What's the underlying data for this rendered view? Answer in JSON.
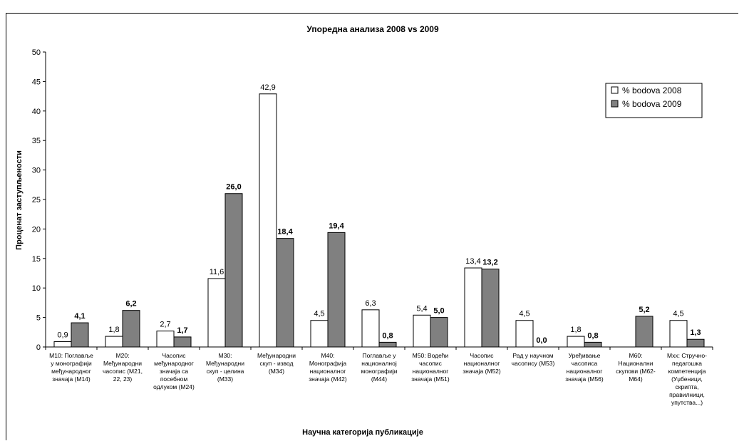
{
  "chart_data": {
    "type": "bar",
    "title": "Упоредна анализа 2008 vs 2009",
    "xlabel": "Научна категорија публикације",
    "ylabel": "Проценат заступљености",
    "ylim": [
      0,
      50
    ],
    "yticks": [
      0,
      5,
      10,
      15,
      20,
      25,
      30,
      35,
      40,
      45,
      50
    ],
    "grid": false,
    "legend_position": "top-right",
    "categories": [
      [
        "M10: Поглавље",
        "у монографији",
        "међународног",
        "значаја (M14)"
      ],
      [
        "M20:",
        "Међународни",
        "часопис (M21,",
        "22, 23)"
      ],
      [
        "Часопис",
        "међународног",
        "значаја са",
        "посебном",
        "одлуком (M24)"
      ],
      [
        "M30:",
        "Међународни",
        "скуп - целина",
        "(M33)"
      ],
      [
        "Међународни",
        "скуп - извод",
        "(M34)"
      ],
      [
        "M40:",
        "Монографија",
        "националног",
        "значаја (M42)"
      ],
      [
        "Поглавље у",
        "националној",
        "монографији",
        "(M44)"
      ],
      [
        "M50: Водећи",
        "часопис",
        "националног",
        "значаја (M51)"
      ],
      [
        "Часопис",
        "националног",
        "значаја (M52)"
      ],
      [
        "Рад у научном",
        "часопису (M53)"
      ],
      [
        "Уређивање",
        "часописа",
        "националног",
        "значаја (M56)"
      ],
      [
        "M60:",
        "Национални",
        "скупови (M62-",
        "M64)"
      ],
      [
        "Mxx: Стручно-",
        "педагошка",
        "компетенција",
        "(Уџбеници,",
        "скрипта,",
        "правилници,",
        "упутства...)"
      ]
    ],
    "series": [
      {
        "name": "% bodova 2008",
        "color": "#ffffff",
        "values": [
          0.9,
          1.8,
          2.7,
          11.6,
          42.9,
          4.5,
          6.3,
          5.4,
          13.4,
          4.5,
          1.8,
          null,
          4.5
        ],
        "labels": [
          "0,9",
          "1,8",
          "2,7",
          "11,6",
          "42,9",
          "4,5",
          "6,3",
          "5,4",
          "13,4",
          "4,5",
          "1,8",
          "",
          "4,5"
        ],
        "label_bold": false
      },
      {
        "name": "% bodova 2009",
        "color": "#808080",
        "values": [
          4.1,
          6.2,
          1.7,
          26.0,
          18.4,
          19.4,
          0.8,
          5.0,
          13.2,
          0.0,
          0.8,
          5.2,
          1.3
        ],
        "labels": [
          "4,1",
          "6,2",
          "1,7",
          "26,0",
          "18,4",
          "19,4",
          "0,8",
          "5,0",
          "13,2",
          "0,0",
          "0,8",
          "5,2",
          "1,3"
        ],
        "label_bold": true
      }
    ]
  }
}
